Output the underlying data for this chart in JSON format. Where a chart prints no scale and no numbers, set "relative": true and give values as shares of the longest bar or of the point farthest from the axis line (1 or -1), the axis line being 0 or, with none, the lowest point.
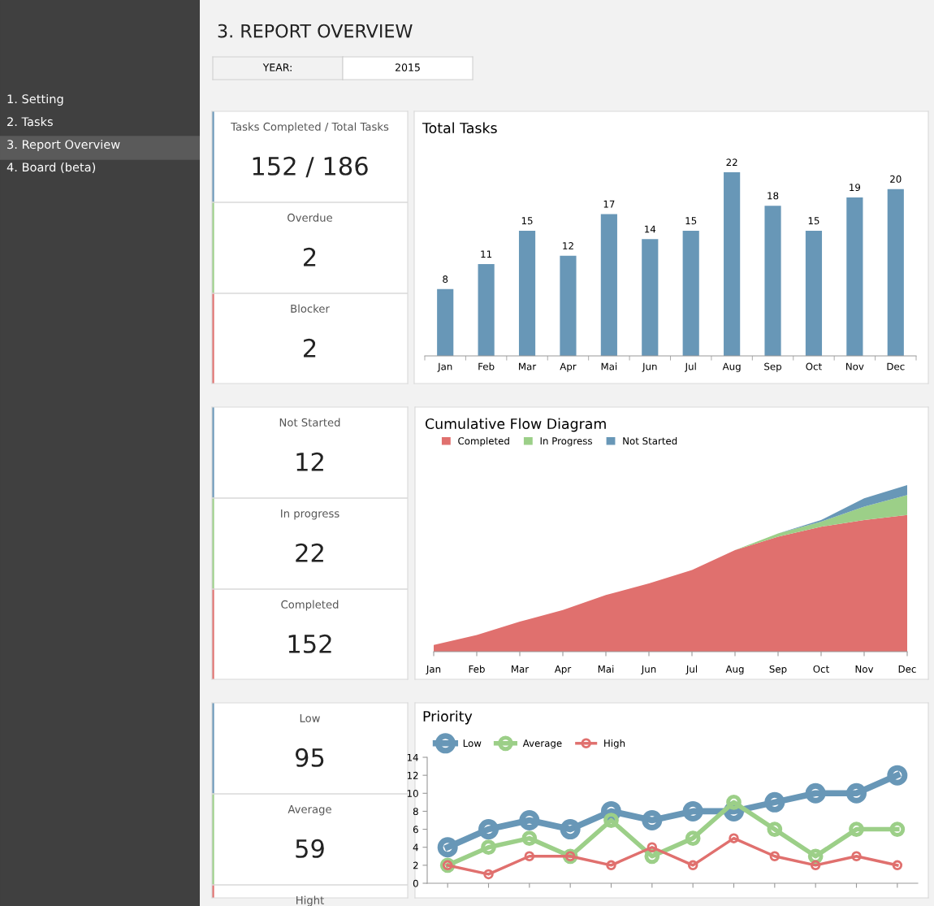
{
  "chart_data": [
    {
      "type": "other",
      "annotations": [
        "1. Setting",
        "2. Tasks",
        "3. Report Overview",
        "4. Board (beta)"
      ]
    },
    {
      "type": "other",
      "title": "3. REPORT OVERVIEW",
      "annotations": [
        "YEAR:",
        "2015"
      ]
    },
    {
      "type": "other",
      "annotations": [
        "Tasks Completed / Total Tasks",
        "152 / 186",
        "Overdue",
        "2",
        "Blocker",
        "2"
      ]
    },
    {
      "type": "bar",
      "title": "Total Tasks",
      "categories": [
        "Jan",
        "Feb",
        "Mar",
        "Apr",
        "Mai",
        "Jun",
        "Jul",
        "Aug",
        "Sep",
        "Oct",
        "Nov",
        "Dec"
      ],
      "values": [
        8,
        11,
        15,
        12,
        17,
        14,
        15,
        22,
        18,
        15,
        19,
        20
      ],
      "color": "#6897b7",
      "data_labels": true
    },
    {
      "type": "other",
      "annotations": [
        "Not Started",
        "12",
        "In progress",
        "22",
        "Completed",
        "152"
      ]
    },
    {
      "type": "area",
      "title": "Cumulative Flow Diagram",
      "stacked": true,
      "relative": true,
      "legend": "top left",
      "categories": [
        "Jan",
        "Feb",
        "Mar",
        "Apr",
        "Mai",
        "Jun",
        "Jul",
        "Aug",
        "Sep",
        "Oct",
        "Nov",
        "Dec"
      ],
      "series": [
        {
          "name": "Completed",
          "color": "#e0706e",
          "values": [
            0.04,
            0.1,
            0.18,
            0.25,
            0.34,
            0.41,
            0.49,
            0.61,
            0.69,
            0.75,
            0.79,
            0.82
          ]
        },
        {
          "name": "In Progress",
          "color": "#9ccf88",
          "values": [
            0,
            0,
            0,
            0,
            0,
            0,
            0,
            0,
            0.02,
            0.03,
            0.08,
            0.12
          ]
        },
        {
          "name": "Not Started",
          "color": "#6897b7",
          "values": [
            0,
            0,
            0,
            0,
            0,
            0,
            0,
            0,
            0,
            0.01,
            0.05,
            0.06
          ]
        }
      ]
    },
    {
      "type": "other",
      "annotations": [
        "Low",
        "95",
        "Average",
        "59",
        "Hight"
      ]
    },
    {
      "type": "line",
      "title": "Priority",
      "marker": "circle",
      "legend": "top left",
      "categories": [
        null,
        null,
        null,
        null,
        null,
        null,
        null,
        null,
        null,
        null,
        null,
        null
      ],
      "ylim": [
        0,
        14
      ],
      "yticks": [
        0,
        2,
        4,
        6,
        8,
        10,
        12,
        14
      ],
      "series": [
        {
          "name": "Low",
          "color": "#6897b7",
          "values": [
            4,
            6,
            7,
            6,
            8,
            7,
            8,
            8,
            9,
            10,
            10,
            12
          ]
        },
        {
          "name": "Average",
          "color": "#9ccf88",
          "values": [
            2,
            4,
            5,
            3,
            7,
            3,
            5,
            9,
            6,
            3,
            6,
            6
          ]
        },
        {
          "name": "High",
          "color": "#e0706e",
          "values": [
            2,
            1,
            3,
            3,
            2,
            4,
            2,
            5,
            3,
            2,
            3,
            2
          ]
        }
      ]
    }
  ]
}
